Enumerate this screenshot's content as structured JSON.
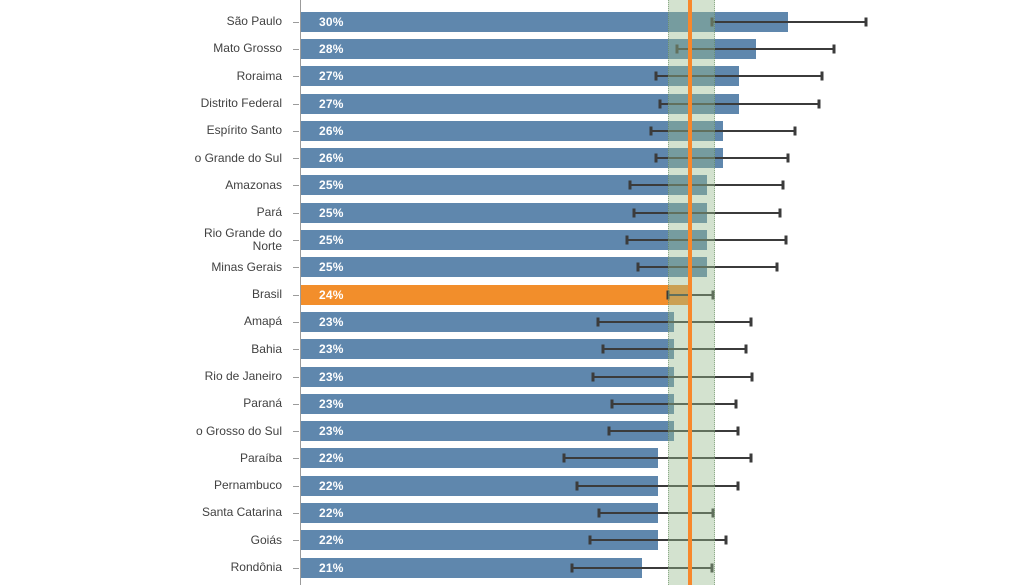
{
  "chart_data": {
    "type": "bar",
    "orientation": "horizontal",
    "title": "",
    "xlabel": "",
    "ylabel": "",
    "x_axis_ticks_visible": false,
    "value_suffix": "%",
    "xlim": [
      0,
      44.5
    ],
    "legend": "none",
    "colors": {
      "bar": "#5f87ad",
      "highlight_bar": "#f28e2b",
      "reference_line": "#f7882b",
      "reference_band": "rgba(150,185,140,0.42)",
      "error_bar": "#3b3b3b",
      "axis": "#9b9b9b",
      "value_text": "#ffffff",
      "label_text": "#414141"
    },
    "reference_line": {
      "value": 24.0
    },
    "reference_band": {
      "low": 22.6,
      "high": 25.4
    },
    "bars": [
      {
        "label": "São Paulo",
        "value": 30,
        "value_label": "30%",
        "ci_low": 25.3,
        "ci_high": 34.8,
        "highlight": false
      },
      {
        "label": "Mato Grosso",
        "value": 28,
        "value_label": "28%",
        "ci_low": 23.2,
        "ci_high": 32.8,
        "highlight": false
      },
      {
        "label": "Roraima",
        "value": 27,
        "value_label": "27%",
        "ci_low": 21.9,
        "ci_high": 32.1,
        "highlight": false
      },
      {
        "label": "Distrito Federal",
        "value": 27,
        "value_label": "27%",
        "ci_low": 22.1,
        "ci_high": 31.9,
        "highlight": false
      },
      {
        "label": "Espírito Santo",
        "value": 26,
        "value_label": "26%",
        "ci_low": 21.6,
        "ci_high": 30.4,
        "highlight": false
      },
      {
        "label": "o Grande do Sul",
        "value": 26,
        "value_label": "26%",
        "ci_low": 21.9,
        "ci_high": 30.0,
        "highlight": false
      },
      {
        "label": "Amazonas",
        "value": 25,
        "value_label": "25%",
        "ci_low": 20.3,
        "ci_high": 29.7,
        "highlight": false
      },
      {
        "label": "Pará",
        "value": 25,
        "value_label": "25%",
        "ci_low": 20.5,
        "ci_high": 29.5,
        "highlight": false
      },
      {
        "label": "Rio Grande do\nNorte",
        "value": 25,
        "value_label": "25%",
        "ci_low": 20.1,
        "ci_high": 29.9,
        "highlight": false
      },
      {
        "label": "Minas Gerais",
        "value": 25,
        "value_label": "25%",
        "ci_low": 20.8,
        "ci_high": 29.3,
        "highlight": false
      },
      {
        "label": "Brasil",
        "value": 24,
        "value_label": "24%",
        "ci_low": 22.6,
        "ci_high": 25.4,
        "highlight": true
      },
      {
        "label": "Amapá",
        "value": 23,
        "value_label": "23%",
        "ci_low": 18.3,
        "ci_high": 27.7,
        "highlight": false
      },
      {
        "label": "Bahia",
        "value": 23,
        "value_label": "23%",
        "ci_low": 18.6,
        "ci_high": 27.4,
        "highlight": false
      },
      {
        "label": "Rio de Janeiro",
        "value": 23,
        "value_label": "23%",
        "ci_low": 18.0,
        "ci_high": 27.8,
        "highlight": false
      },
      {
        "label": "Paraná",
        "value": 23,
        "value_label": "23%",
        "ci_low": 19.2,
        "ci_high": 26.8,
        "highlight": false
      },
      {
        "label": "o Grosso do Sul",
        "value": 23,
        "value_label": "23%",
        "ci_low": 19.0,
        "ci_high": 26.9,
        "highlight": false
      },
      {
        "label": "Paraíba",
        "value": 22,
        "value_label": "22%",
        "ci_low": 16.2,
        "ci_high": 27.7,
        "highlight": false
      },
      {
        "label": "Pernambuco",
        "value": 22,
        "value_label": "22%",
        "ci_low": 17.0,
        "ci_high": 26.9,
        "highlight": false
      },
      {
        "label": "Santa Catarina",
        "value": 22,
        "value_label": "22%",
        "ci_low": 18.4,
        "ci_high": 25.4,
        "highlight": false
      },
      {
        "label": "Goiás",
        "value": 22,
        "value_label": "22%",
        "ci_low": 17.8,
        "ci_high": 26.2,
        "highlight": false
      },
      {
        "label": "Rondônia",
        "value": 21,
        "value_label": "21%",
        "ci_low": 16.7,
        "ci_high": 25.3,
        "highlight": false
      }
    ]
  }
}
